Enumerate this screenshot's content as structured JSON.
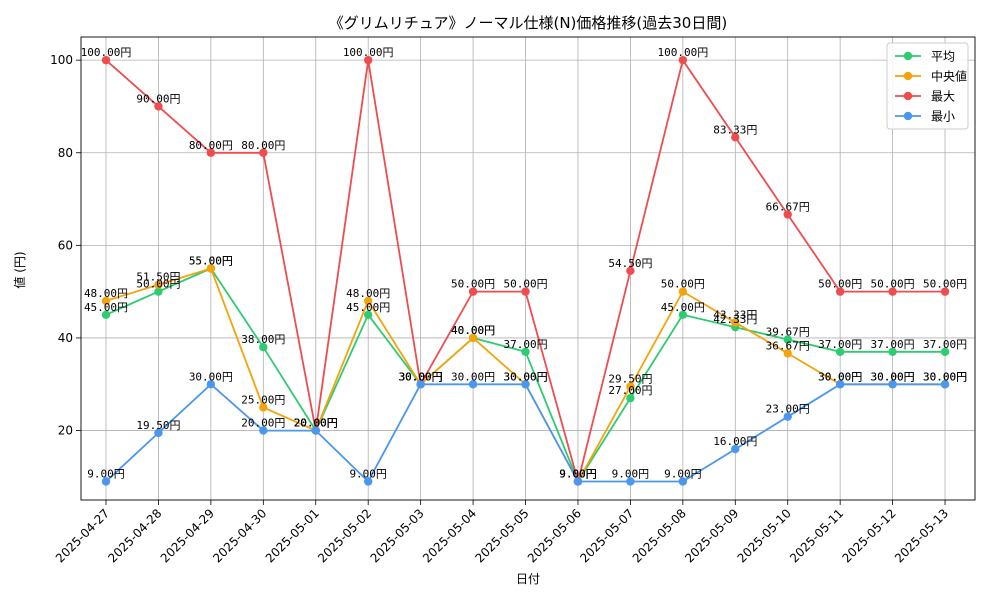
{
  "chart_data": {
    "type": "line",
    "title": "《グリムリチュア》ノーマル仕様(N)価格推移(過去30日間)",
    "xlabel": "日付",
    "ylabel": "値 (円)",
    "ylim": [
      5,
      105
    ],
    "yticks": [
      20,
      40,
      60,
      80,
      100
    ],
    "grid": true,
    "legend_position": "top-right",
    "value_suffix": "円",
    "categories": [
      "2025-04-27",
      "2025-04-28",
      "2025-04-29",
      "2025-04-30",
      "2025-05-01",
      "2025-05-02",
      "2025-05-03",
      "2025-05-04",
      "2025-05-05",
      "2025-05-06",
      "2025-05-07",
      "2025-05-08",
      "2025-05-09",
      "2025-05-10",
      "2025-05-11",
      "2025-05-12",
      "2025-05-13"
    ],
    "series": [
      {
        "name": "平均",
        "color": "#2ecc71",
        "values": [
          45.0,
          50.0,
          55.0,
          38.0,
          20.0,
          45.0,
          30.0,
          40.0,
          37.0,
          9.0,
          27.0,
          45.0,
          42.33,
          39.67,
          37.0,
          37.0,
          37.0
        ]
      },
      {
        "name": "中央値",
        "color": "#f5a30a",
        "values": [
          48.0,
          51.5,
          55.0,
          25.0,
          20.0,
          48.0,
          30.0,
          40.0,
          30.0,
          9.0,
          29.5,
          50.0,
          43.33,
          36.67,
          30.0,
          30.0,
          30.0
        ]
      },
      {
        "name": "最大",
        "color": "#ef4c4f",
        "values": [
          100.0,
          90.0,
          80.0,
          80.0,
          20.0,
          100.0,
          30.0,
          50.0,
          50.0,
          9.0,
          54.5,
          100.0,
          83.33,
          66.67,
          50.0,
          50.0,
          50.0
        ]
      },
      {
        "name": "最小",
        "color": "#4a97f0",
        "values": [
          9.0,
          19.5,
          30.0,
          20.0,
          20.0,
          9.0,
          30.0,
          30.0,
          30.0,
          9.0,
          9.0,
          9.0,
          16.0,
          23.0,
          30.0,
          30.0,
          30.0
        ]
      }
    ]
  }
}
